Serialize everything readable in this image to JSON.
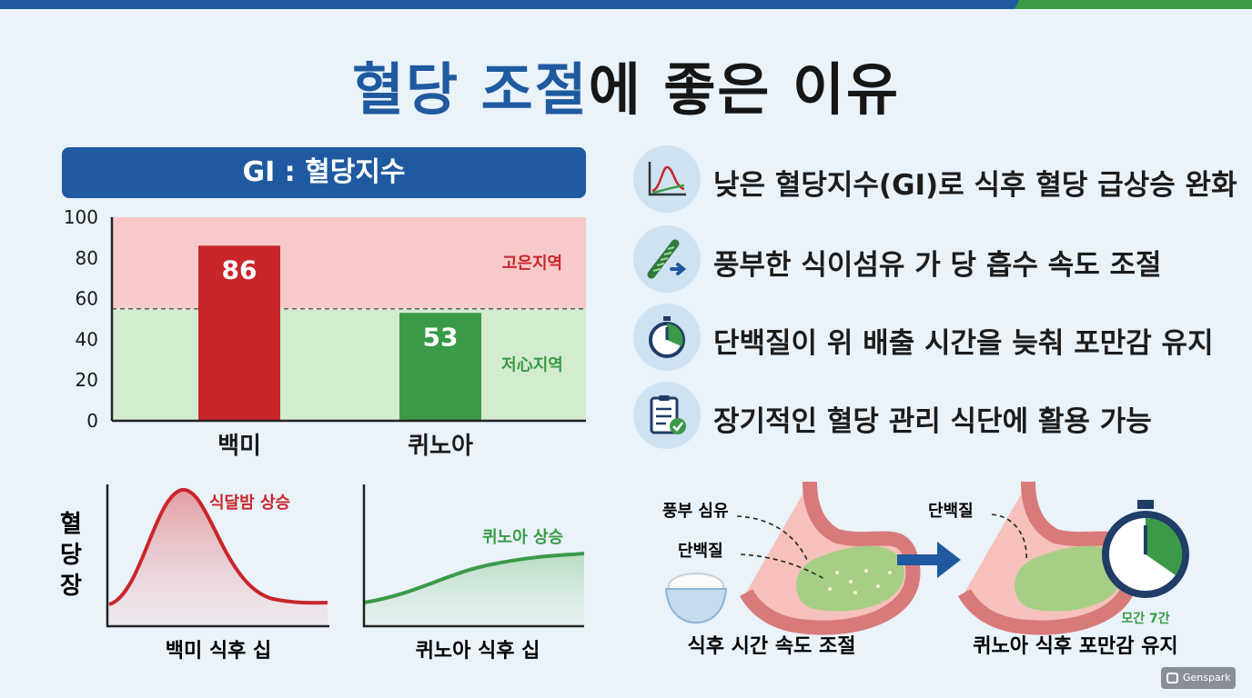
{
  "title": {
    "highlight": "혈당 조절",
    "rest": "에 좋은 이유"
  },
  "gi_header": "GI : 혈당지수",
  "chart_data": {
    "type": "bar",
    "categories": [
      "백미",
      "퀴노아"
    ],
    "values": [
      86,
      53
    ],
    "ylim": [
      0,
      100
    ],
    "yticks": [
      0,
      20,
      40,
      60,
      80,
      100
    ],
    "threshold": 55,
    "zones": [
      {
        "label": "고은지역",
        "range": [
          55,
          100
        ],
        "color": "#f8c9c9"
      },
      {
        "label": "저心지역",
        "range": [
          0,
          55
        ],
        "color": "#d3ebcf"
      }
    ],
    "bar_colors": [
      "#c8262b",
      "#3a9a48"
    ]
  },
  "benefits": [
    {
      "icon": "line-chart-icon",
      "text": "낮은 혈당지수(GI)로 식후 혈당 급상승 완화"
    },
    {
      "icon": "fiber-icon",
      "text": "풍부한 식이섬유 가 당 흡수 속도 조절"
    },
    {
      "icon": "stopwatch-icon",
      "text": "단백질이 위 배출 시간을 늦춰 포만감 유지"
    },
    {
      "icon": "checklist-icon",
      "text": "장기적인 혈당 관리 식단에 활용 가능"
    }
  ],
  "curves": {
    "ylabel": "혈당장",
    "white_rice": {
      "label": "식달밤 상승",
      "caption": "백미 식후 십",
      "color": "#c8262b"
    },
    "quinoa": {
      "label": "퀴노아 상승",
      "caption": "퀴노아 식후 십",
      "color": "#3a9a48"
    }
  },
  "stomach": {
    "left": {
      "label1": "풍부 심유",
      "label2": "단백질",
      "caption": "식후 시간 속도 조절"
    },
    "right": {
      "label1": "단백질",
      "timer": "모간 7간",
      "caption": "퀴노아 식후 포만감 유지"
    }
  },
  "badge": "Genspark"
}
